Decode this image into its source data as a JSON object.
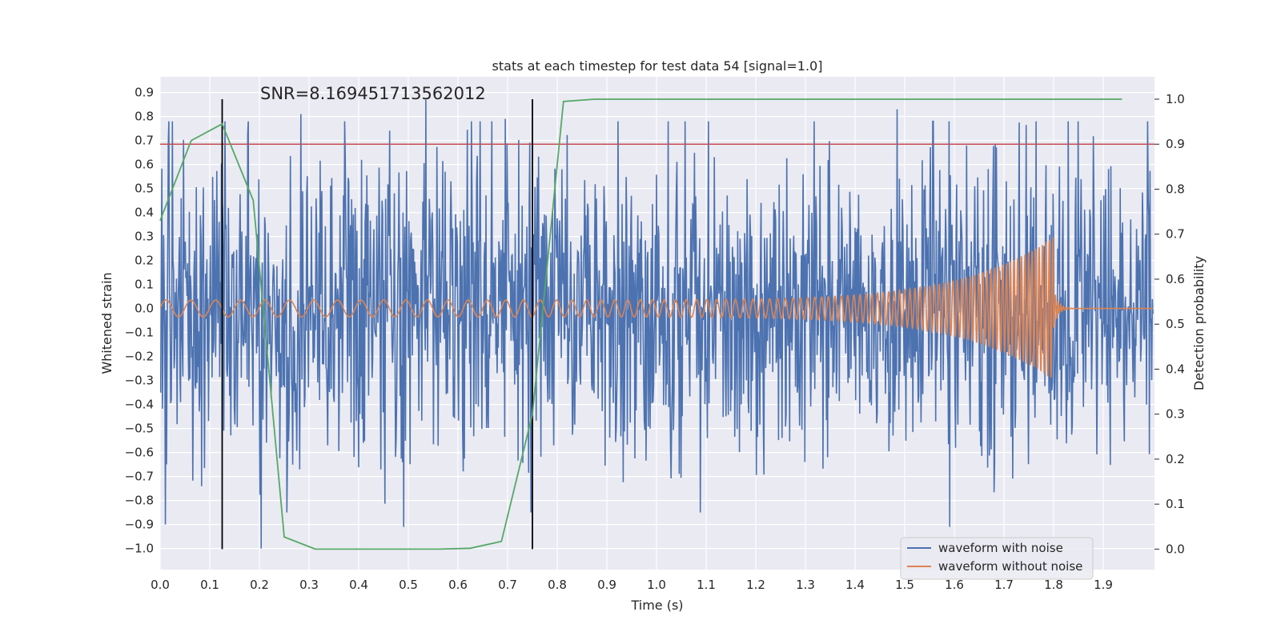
{
  "chart_data": {
    "type": "line",
    "title": "stats at each timestep for test data 54 [signal=1.0]",
    "xlabel": "Time (s)",
    "ylabel": "Whitened strain",
    "ylabel_right": "Detection probability",
    "xlim": [
      0.0,
      2.0
    ],
    "ylim": [
      -1.09,
      0.95
    ],
    "ylim_right": [
      -0.05,
      1.04
    ],
    "x_ticks": [
      "0.0",
      "0.1",
      "0.2",
      "0.3",
      "0.4",
      "0.5",
      "0.6",
      "0.7",
      "0.8",
      "0.9",
      "1.0",
      "1.1",
      "1.2",
      "1.3",
      "1.4",
      "1.5",
      "1.6",
      "1.7",
      "1.8",
      "1.9"
    ],
    "y_ticks": [
      "0.9",
      "0.8",
      "0.7",
      "0.6",
      "0.5",
      "0.4",
      "0.3",
      "0.2",
      "0.1",
      "0.0",
      "−0.1",
      "−0.2",
      "−0.3",
      "−0.4",
      "−0.5",
      "−0.6",
      "−0.7",
      "−0.8",
      "−0.9",
      "−1.0"
    ],
    "y_right_ticks": [
      "1.0",
      "0.9",
      "0.8",
      "0.7",
      "0.6",
      "0.5",
      "0.4",
      "0.3",
      "0.2",
      "0.1",
      "0.0"
    ],
    "grid": true,
    "annotation": "SNR=8.169451713562012",
    "threshold": {
      "value": 0.9,
      "axis": "right",
      "color": "#c44e52"
    },
    "vlines": [
      {
        "x": 0.125,
        "color": "#000000"
      },
      {
        "x": 0.75,
        "color": "#000000"
      }
    ],
    "series": [
      {
        "name": "waveform with noise",
        "color": "#4c72b0",
        "axis": "left",
        "description_x_range": [
          0.0,
          2.0
        ],
        "approx_amplitude_std": 0.32,
        "notable_peaks": [
          {
            "x": 0.283,
            "y": 0.81
          },
          {
            "x": 0.535,
            "y": 0.87
          },
          {
            "x": 0.695,
            "y": 0.79
          },
          {
            "x": 1.485,
            "y": 0.83
          },
          {
            "x": 1.765,
            "y": 0.78
          },
          {
            "x": 0.203,
            "y": -1.0
          },
          {
            "x": 0.49,
            "y": -0.91
          },
          {
            "x": 0.01,
            "y": -0.9
          },
          {
            "x": 1.59,
            "y": -0.91
          }
        ]
      },
      {
        "name": "waveform without noise",
        "color": "#dd8452",
        "axis": "left",
        "chirp": {
          "start_x": 0.0,
          "merger_x": 1.8,
          "end_x": 2.0,
          "start_amplitude": 0.035,
          "peak_amplitude": 0.3,
          "start_freq_hz": 20,
          "end_freq_hz": 150
        }
      },
      {
        "name": "Detection probability",
        "color": "#55a868",
        "axis": "right",
        "x": [
          0.0,
          0.0625,
          0.125,
          0.1875,
          0.25,
          0.3125,
          0.375,
          0.4375,
          0.5,
          0.5625,
          0.625,
          0.6875,
          0.75,
          0.8125,
          0.875,
          0.9375,
          1.0,
          1.0625,
          1.125,
          1.1875,
          1.25,
          1.3125,
          1.375,
          1.4375,
          1.5,
          1.5625,
          1.625,
          1.6875,
          1.75,
          1.8125,
          1.875,
          1.9375
        ],
        "y": [
          0.73,
          0.908,
          0.945,
          0.775,
          0.027,
          0.0,
          0.0,
          0.0,
          0.0,
          0.0,
          0.002,
          0.017,
          0.3,
          0.995,
          1.0,
          1.0,
          1.0,
          1.0,
          1.0,
          1.0,
          1.0,
          1.0,
          1.0,
          1.0,
          1.0,
          1.0,
          1.0,
          1.0,
          1.0,
          1.0,
          1.0,
          1.0
        ]
      }
    ],
    "legend": {
      "position": "lower-right",
      "entries": [
        {
          "label": "waveform with noise",
          "color": "#4c72b0"
        },
        {
          "label": "waveform without noise",
          "color": "#dd8452"
        }
      ]
    },
    "background": "#eaeaf2",
    "grid_color": "#ffffff"
  }
}
